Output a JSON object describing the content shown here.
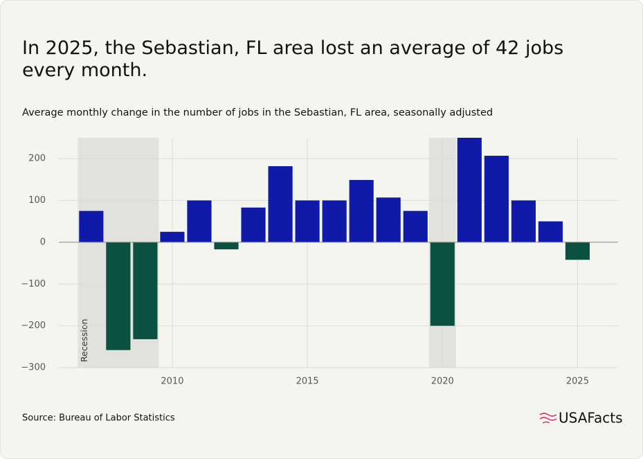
{
  "chart_data": {
    "type": "bar",
    "title": "In 2025, the Sebastian, FL area lost an average of 42 jobs every month.",
    "subtitle": "Average monthly change in the number of jobs in the Sebastian, FL area, seasonally adjusted",
    "source": "Source: Bureau of Labor Statistics",
    "brand": "USAFacts",
    "x": [
      2007,
      2008,
      2009,
      2010,
      2011,
      2012,
      2013,
      2014,
      2015,
      2016,
      2017,
      2018,
      2019,
      2020,
      2021,
      2022,
      2023,
      2024,
      2025
    ],
    "values": [
      75,
      -258,
      -232,
      25,
      100,
      -17,
      83,
      182,
      100,
      100,
      149,
      107,
      75,
      -200,
      250,
      207,
      100,
      50,
      -42
    ],
    "colors": {
      "positive": "#0f1aa8",
      "negative": "#0b5040"
    },
    "xlim": [
      2005.8,
      2026.5
    ],
    "xticks": [
      2010,
      2015,
      2020,
      2025
    ],
    "ylim": [
      -300,
      250
    ],
    "yticks": [
      {
        "value": -300,
        "label": "−300"
      },
      {
        "value": -200,
        "label": "−200"
      },
      {
        "value": -100,
        "label": "−100"
      },
      0,
      100,
      200
    ],
    "grid": true,
    "recession_label": "Recession",
    "recessions": [
      {
        "start": 2006.5,
        "end": 2009.5
      },
      {
        "start": 2019.5,
        "end": 2020.5
      }
    ]
  }
}
